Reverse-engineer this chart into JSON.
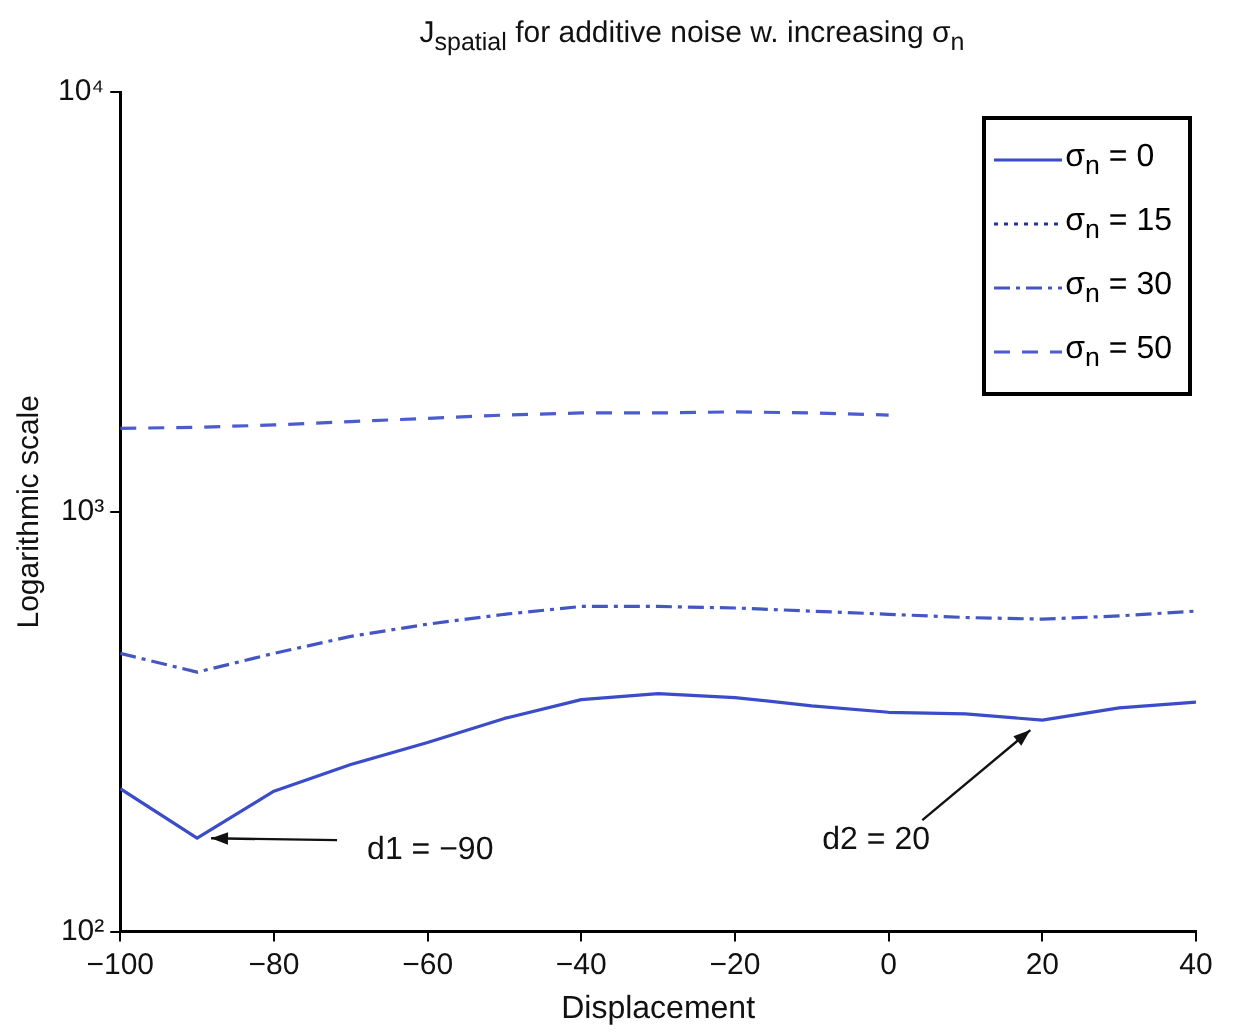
{
  "chart_data": {
    "type": "line",
    "title": "J$_{spatial}$ for additive noise w. increasing σ$_{n}$",
    "xlabel": "Displacement",
    "ylabel": "Logarithmic scale",
    "x": [
      -100,
      -90,
      -80,
      -70,
      -60,
      -50,
      -40,
      -30,
      -20,
      -10,
      0,
      10,
      20,
      30,
      40
    ],
    "series": [
      {
        "name": "σ$_{n}$ = 0",
        "color": "#3b4cc8",
        "line_style": "solid",
        "values": [
          219,
          167,
          216,
          250,
          282,
          322,
          357,
          369,
          361,
          345,
          333,
          330,
          319,
          341,
          352
        ]
      },
      {
        "name": "σ$_{n}$ = 15",
        "color": "#22339a",
        "line_style": "dotted",
        "values": [
          null,
          null,
          null,
          null,
          null,
          null,
          null,
          null,
          null,
          null,
          null,
          null,
          null,
          null,
          null
        ]
      },
      {
        "name": "σ$_{n}$ = 30",
        "color": "#4456c4",
        "line_style": "dashdot",
        "values": [
          460,
          415,
          460,
          505,
          540,
          570,
          595,
          595,
          590,
          580,
          570,
          560,
          555,
          565,
          580
        ]
      },
      {
        "name": "σ$_{n}$ = 50",
        "color": "#4a5cd0",
        "line_style": "dashed",
        "values": [
          1580,
          1590,
          1610,
          1640,
          1670,
          1700,
          1720,
          1720,
          1730,
          1720,
          1700,
          null,
          null,
          null,
          null
        ]
      }
    ],
    "xlim": [
      -100,
      40
    ],
    "xticks": [
      -100,
      -80,
      -60,
      -40,
      -20,
      0,
      20,
      40
    ],
    "log": "y",
    "ylim": [
      100,
      10000
    ],
    "yticks": [
      {
        "value": 100,
        "label": "10²"
      },
      {
        "value": 1000,
        "label": "10³"
      },
      {
        "value": 10000,
        "label": "10⁴"
      }
    ],
    "grid": false,
    "legend": "top right",
    "marker": "none",
    "annotations": [
      {
        "text": "d1 = −90",
        "x": -90,
        "y": 167
      },
      {
        "text": "d2 = 20",
        "x": 20,
        "y": 319
      }
    ]
  }
}
